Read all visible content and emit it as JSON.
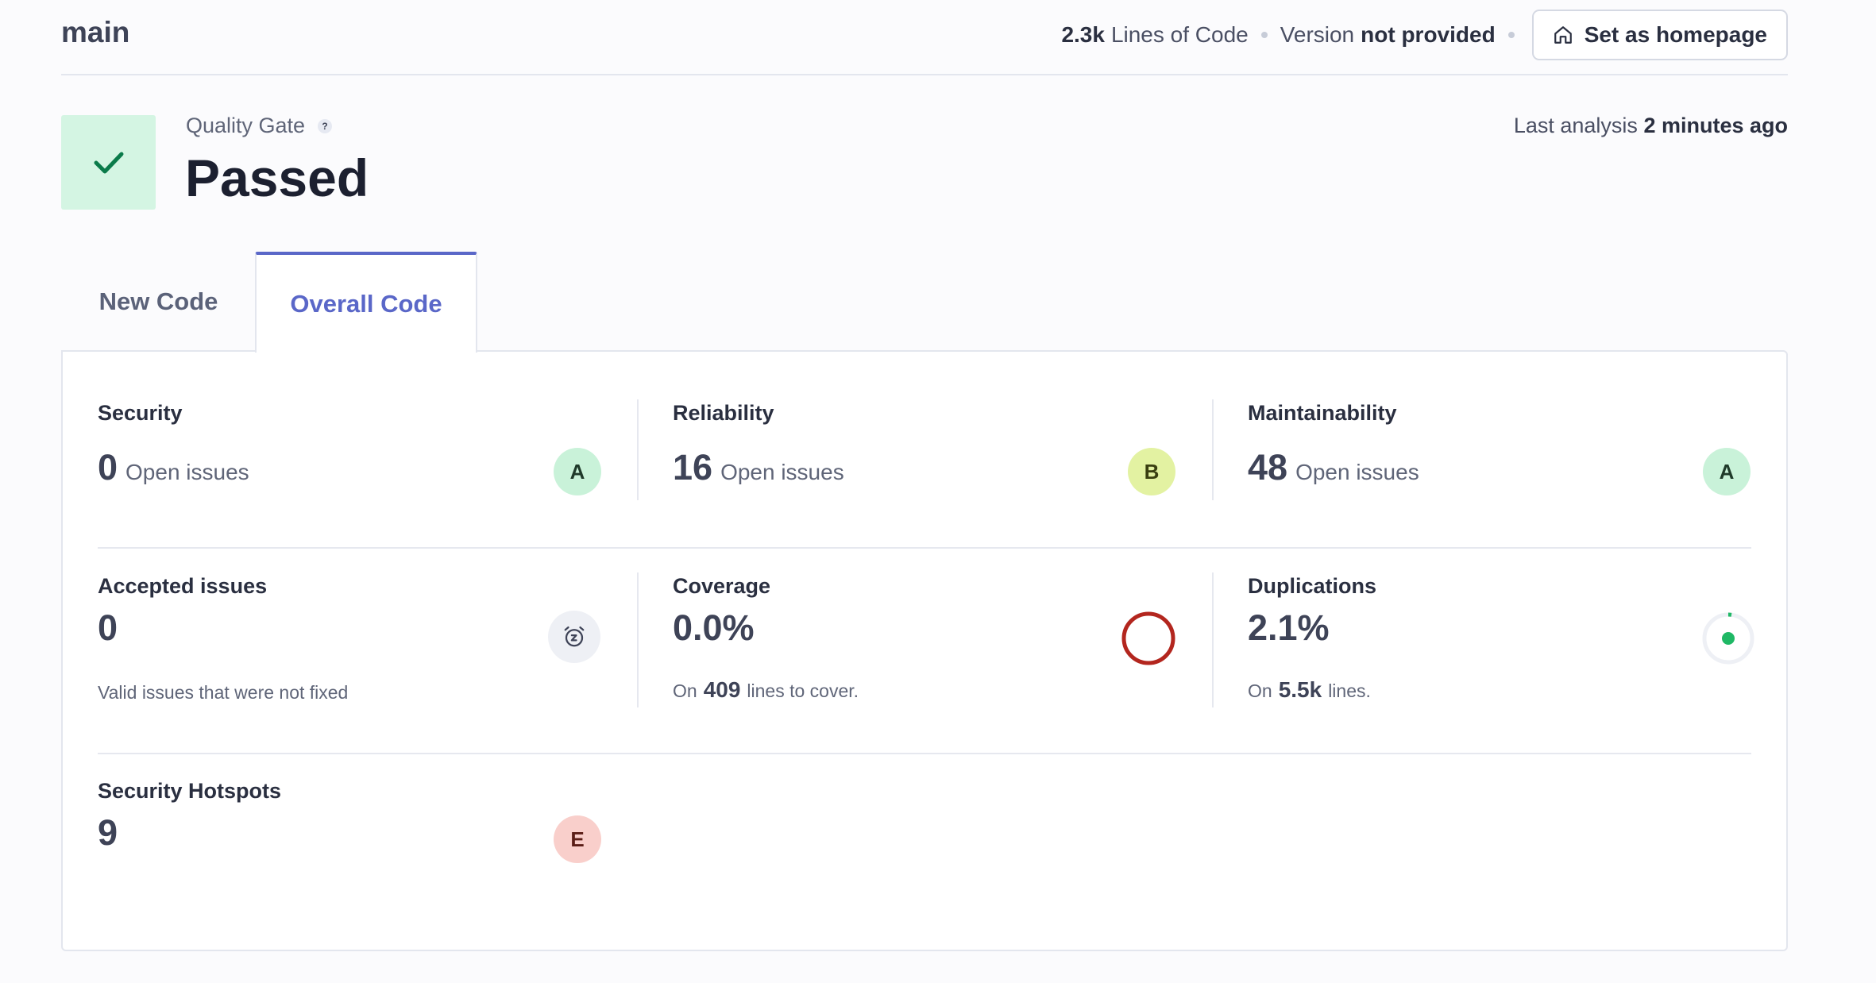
{
  "header": {
    "branch": "main",
    "loc_value": "2.3k",
    "loc_label": "Lines of Code",
    "version_label": "Version",
    "version_value": "not provided",
    "homepage_button": "Set as homepage"
  },
  "quality_gate": {
    "label": "Quality Gate",
    "help": "?",
    "status": "Passed",
    "last_analysis_label": "Last analysis",
    "last_analysis_value": "2 minutes ago"
  },
  "tabs": [
    {
      "label": "New Code",
      "active": false
    },
    {
      "label": "Overall Code",
      "active": true
    }
  ],
  "metrics": {
    "security": {
      "title": "Security",
      "value": "0",
      "unit": "Open issues",
      "rating": "A"
    },
    "reliability": {
      "title": "Reliability",
      "value": "16",
      "unit": "Open issues",
      "rating": "B"
    },
    "maintainability": {
      "title": "Maintainability",
      "value": "48",
      "unit": "Open issues",
      "rating": "A"
    },
    "accepted": {
      "title": "Accepted issues",
      "value": "0",
      "sub": "Valid issues that were not fixed"
    },
    "coverage": {
      "title": "Coverage",
      "value": "0.0%",
      "sub_prefix": "On",
      "sub_num": "409",
      "sub_suffix": "lines to cover.",
      "percent": 0.0
    },
    "duplications": {
      "title": "Duplications",
      "value": "2.1%",
      "sub_prefix": "On",
      "sub_num": "5.5k",
      "sub_suffix": "lines.",
      "percent": 2.1
    },
    "hotspots": {
      "title": "Security Hotspots",
      "value": "9",
      "rating": "E"
    }
  },
  "colors": {
    "accent": "#5a67c8",
    "passed_bg": "#d4f5e3",
    "passed_check": "#0a7b4a",
    "coverage_ring": "#b3261e",
    "duplication_dot": "#1fb865"
  }
}
